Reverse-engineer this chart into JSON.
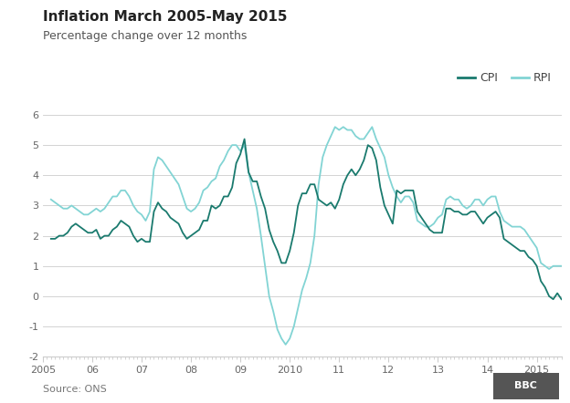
{
  "title": "Inflation March 2005-May 2015",
  "subtitle": "Percentage change over 12 months",
  "source": "Source: ONS",
  "cpi_color": "#1a7a6e",
  "rpi_color": "#82d4d4",
  "background_color": "#ffffff",
  "grid_color": "#cccccc",
  "ylim": [
    -2,
    6
  ],
  "yticks": [
    -2,
    -1,
    0,
    1,
    2,
    3,
    4,
    5,
    6
  ],
  "xtick_positions": [
    2005,
    2006,
    2007,
    2008,
    2009,
    2010,
    2011,
    2012,
    2013,
    2014,
    2015
  ],
  "xtick_labels": [
    "2005",
    "06",
    "07",
    "08",
    "09",
    "2010",
    "11",
    "12",
    "13",
    "14",
    "2015"
  ],
  "legend_labels": [
    "CPI",
    "RPI"
  ],
  "cpi_data": [
    1.9,
    1.9,
    2.0,
    2.0,
    2.1,
    2.3,
    2.4,
    2.3,
    2.2,
    2.1,
    2.1,
    2.2,
    1.9,
    2.0,
    2.0,
    2.2,
    2.3,
    2.5,
    2.4,
    2.3,
    2.0,
    1.8,
    1.9,
    1.8,
    1.8,
    2.8,
    3.1,
    2.9,
    2.8,
    2.6,
    2.5,
    2.4,
    2.1,
    1.9,
    2.0,
    2.1,
    2.2,
    2.5,
    2.5,
    3.0,
    2.9,
    3.0,
    3.3,
    3.3,
    3.6,
    4.4,
    4.7,
    5.2,
    4.1,
    3.8,
    3.8,
    3.3,
    2.9,
    2.2,
    1.8,
    1.5,
    1.1,
    1.1,
    1.5,
    2.1,
    3.0,
    3.4,
    3.4,
    3.7,
    3.7,
    3.2,
    3.1,
    3.0,
    3.1,
    2.9,
    3.2,
    3.7,
    4.0,
    4.2,
    4.0,
    4.2,
    4.5,
    5.0,
    4.9,
    4.5,
    3.6,
    3.0,
    2.7,
    2.4,
    3.5,
    3.4,
    3.5,
    3.5,
    3.5,
    2.8,
    2.6,
    2.4,
    2.2,
    2.1,
    2.1,
    2.1,
    2.9,
    2.9,
    2.8,
    2.8,
    2.7,
    2.7,
    2.8,
    2.8,
    2.6,
    2.4,
    2.6,
    2.7,
    2.8,
    2.6,
    1.9,
    1.8,
    1.7,
    1.6,
    1.5,
    1.5,
    1.3,
    1.2,
    1.0,
    0.5,
    0.3,
    0.0,
    -0.1,
    0.1,
    -0.1
  ],
  "rpi_data": [
    3.2,
    3.1,
    3.0,
    2.9,
    2.9,
    3.0,
    2.9,
    2.8,
    2.7,
    2.7,
    2.8,
    2.9,
    2.8,
    2.9,
    3.1,
    3.3,
    3.3,
    3.5,
    3.5,
    3.3,
    3.0,
    2.8,
    2.7,
    2.5,
    2.8,
    4.2,
    4.6,
    4.5,
    4.3,
    4.1,
    3.9,
    3.7,
    3.3,
    2.9,
    2.8,
    2.9,
    3.1,
    3.5,
    3.6,
    3.8,
    3.9,
    4.3,
    4.5,
    4.8,
    5.0,
    5.0,
    4.8,
    5.0,
    4.1,
    3.5,
    2.9,
    2.0,
    1.0,
    0.0,
    -0.5,
    -1.1,
    -1.4,
    -1.6,
    -1.4,
    -1.0,
    -0.4,
    0.2,
    0.6,
    1.1,
    2.0,
    3.7,
    4.6,
    5.0,
    5.3,
    5.6,
    5.5,
    5.6,
    5.5,
    5.5,
    5.3,
    5.2,
    5.2,
    5.4,
    5.6,
    5.2,
    4.9,
    4.6,
    4.0,
    3.6,
    3.3,
    3.1,
    3.3,
    3.3,
    3.1,
    2.5,
    2.4,
    2.3,
    2.3,
    2.4,
    2.6,
    2.7,
    3.2,
    3.3,
    3.2,
    3.2,
    3.0,
    2.9,
    3.0,
    3.2,
    3.2,
    3.0,
    3.2,
    3.3,
    3.3,
    2.8,
    2.5,
    2.4,
    2.3,
    2.3,
    2.3,
    2.2,
    2.0,
    1.8,
    1.6,
    1.1,
    1.0,
    0.9,
    1.0,
    1.0,
    1.0
  ]
}
